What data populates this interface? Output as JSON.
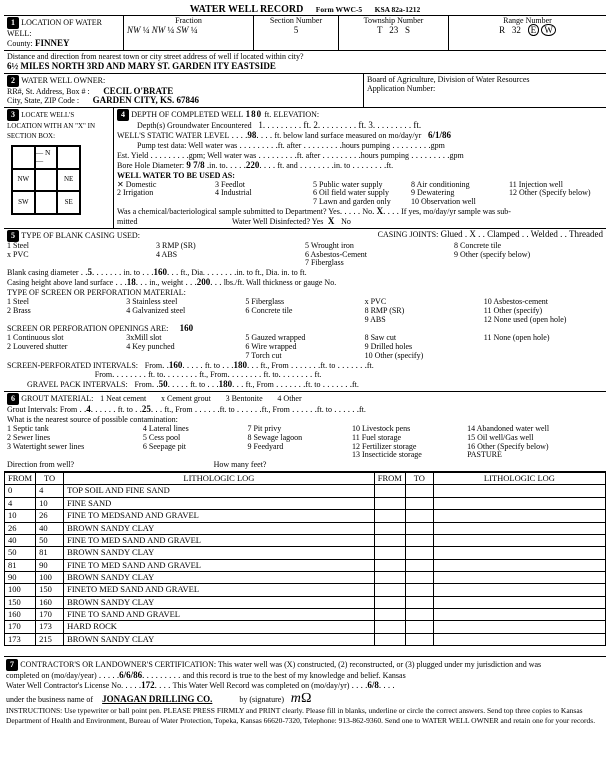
{
  "header": {
    "title": "WATER WELL RECORD",
    "form": "Form WWC-5",
    "ksa": "KSA 82a-1212"
  },
  "location": {
    "section_label": "LOCATION OF WATER WELL:",
    "county_label": "County:",
    "county": "FINNEY",
    "fraction_label": "Fraction",
    "frac_a": "NW",
    "frac_b": "NW",
    "frac_c": "SW",
    "section_number_label": "Section Number",
    "section_number": "5",
    "township_label": "Township Number",
    "township_t": "T",
    "township_num": "23",
    "township_s": "S",
    "range_label": "Range Number",
    "range_r": "R",
    "range_num": "32",
    "range_ew_e": "E",
    "range_ew_w": "W",
    "distance_label": "Distance and direction from nearest town or city street address of well if located within city?",
    "distance": "6½ MILES NORTH 3RD AND MARY ST. GARDEN   ITY EASTSIDE"
  },
  "owner": {
    "head": "WATER WELL OWNER:",
    "addr_label": "RR#, St. Address, Box # :",
    "city_label": "City, State, ZIP Code :",
    "name": "CECIL O'BRATE",
    "city": "GARDEN CITY, KS. 67846",
    "board": "Board of Agriculture, Division of Water Resources",
    "app_num_label": "Application Number:"
  },
  "locate_box": {
    "head": "LOCATE WELL'S LOCATION WITH AN \"X\" IN SECTION BOX:",
    "nw": "NW",
    "ne": "NE",
    "sw": "SW",
    "se": "SE",
    "w": "W",
    "e": "E",
    "n": "N",
    "s": "S",
    "mile": "1 Mile"
  },
  "depth": {
    "head": "DEPTH OF COMPLETED WELL",
    "depth": "180",
    "ft": "ft.",
    "elev": "ELEVATION:",
    "depths_enc": "Depth(s) Groundwater Encountered",
    "enc1": "1",
    "enc2": "ft.  2",
    "enc3": "ft.  3",
    "enc_ft": "ft.",
    "static_label": "WELL'S STATIC WATER LEVEL",
    "static": "98",
    "static_suffix": "ft. below land surface measured on mo/day/yr",
    "static_date": "6/1/86",
    "pump_test": "Pump test data:  Well water was",
    "ft_after": "ft. after",
    "hours_pumping": "hours pumping",
    "gpm": "gpm",
    "est_yield": "Est. Yield",
    "gpm2": "gpm; Well water was",
    "bore_label": "Bore Hole Diameter:",
    "bore_a": "9 7/8",
    "bore_in_to": "in. to",
    "bore_b": "220",
    "bore_ft_and": "ft. and",
    "bore_in_to2": "in. to",
    "bore_ft": "ft.",
    "use_head": "WELL WATER TO BE USED AS:",
    "uses": [
      {
        "n": "x",
        "l": "Domestic"
      },
      {
        "n": "3",
        "l": "Feedlot"
      },
      {
        "n": "5",
        "l": "Public water supply"
      },
      {
        "n": "8",
        "l": "Air conditioning"
      },
      {
        "n": "11",
        "l": "Injection well"
      },
      {
        "n": "2",
        "l": "Irrigation"
      },
      {
        "n": "4",
        "l": "Industrial"
      },
      {
        "n": "6",
        "l": "Oil field water supply"
      },
      {
        "n": "9",
        "l": "Dewatering"
      },
      {
        "n": "12",
        "l": "Other (Specify below)"
      },
      {
        "n": "",
        "l": ""
      },
      {
        "n": "",
        "l": ""
      },
      {
        "n": "7",
        "l": "Lawn and garden only"
      },
      {
        "n": "10",
        "l": "Observation well"
      },
      {
        "n": "",
        "l": ""
      }
    ],
    "chem_q": "Was a chemical/bacteriological sample submitted to Department?  Yes",
    "chem_no": "No",
    "chem_x": "X",
    "chem_suffix": "If yes, mo/day/yr sample was sub-",
    "mitted": "mitted",
    "disinfected": "Water Well Disinfected?  Yes",
    "disinf_x": "X",
    "disinf_no": "No"
  },
  "casing": {
    "head": "TYPE OF BLANK CASING USED:",
    "opts_row1": [
      "1 Steel",
      "3 RMP (SR)",
      "5 Wrought iron",
      "8 Concrete tile"
    ],
    "opts_row2": [
      "x PVC",
      "4 ABS",
      "6 Asbestos-Cement",
      "9 Other (specify below)"
    ],
    "opts_row3": [
      "",
      "",
      "7 Fiberglass",
      ""
    ],
    "joints_label": "CASING JOINTS:",
    "joints": [
      "Glued . X",
      "Clamped",
      "Welded",
      "Threaded"
    ],
    "blank_dia_label": "Blank casing diameter",
    "blank_dia": "5",
    "blank_in_to": "in. to",
    "blank_to": "160",
    "blank_ft_dia": "ft., Dia.",
    "blank_suffix": "in. to           ft., Dia.           in. to           ft.",
    "casing_height_label": "Casing height above land surface",
    "casing_height": "18",
    "casing_in_weight": "in., weight",
    "casing_weight": "200",
    "casing_lbsft": "lbs./ft. Wall thickness or gauge No.",
    "screen_head": "TYPE OF SCREEN OR PERFORATION MATERIAL:",
    "screen_opts_r1": [
      "1 Steel",
      "3 Stainless steel",
      "5 Fiberglass",
      "x PVC",
      "10 Asbestos-cement"
    ],
    "screen_opts_r2": [
      "2 Brass",
      "4 Galvanized steel",
      "6 Concrete tile",
      "8 RMP (SR)",
      "11 Other (specify)"
    ],
    "screen_opts_r3": [
      "",
      "",
      "",
      "9 ABS",
      "12 None used (open hole)"
    ],
    "open_head": "SCREEN OR PERFORATION OPENINGS ARE:",
    "open_val": "160",
    "open_opts_r1": [
      "1 Continuous slot",
      "3xMill slot",
      "5 Gauzed wrapped",
      "8 Saw cut",
      "11 None (open hole)"
    ],
    "open_opts_r2": [
      "2 Louvered shutter",
      "4 Key punched",
      "6 Wire wrapped",
      "9 Drilled holes",
      ""
    ],
    "open_opts_r3": [
      "",
      "",
      "7 Torch cut",
      "10 Other (specify)",
      ""
    ],
    "perf_label": "SCREEN-PERFORATED INTERVALS:",
    "perf_from1": "160",
    "perf_to1": "180",
    "from_label": "From",
    "ft_to_label": "ft. to",
    "ft_label": "ft.",
    "ft_from_label": "ft., From",
    "ft_to2_label": "ft. to",
    "ft2": "ft.",
    "gravel_label": "GRAVEL PACK INTERVALS:",
    "gravel_from": "50",
    "gravel_to": "180"
  },
  "grout": {
    "head": "GROUT MATERIAL:",
    "opts": [
      "1 Neat cement",
      "x Cement grout",
      "3 Bentonite",
      "4 Other"
    ],
    "intervals_label": "Grout Intervals:   From",
    "from": "4",
    "to": "25",
    "ft_to": "ft. to",
    "ft_from": "ft., From",
    "ft": "ft.",
    "nearest_label": "What is the nearest source of possible contamination:",
    "src": [
      [
        "1 Septic tank",
        "4 Lateral lines",
        "7 Pit privy",
        "10 Livestock pens",
        "14 Abandoned water well"
      ],
      [
        "2 Sewer lines",
        "5 Cess pool",
        "8 Sewage lagoon",
        "11 Fuel storage",
        "15 Oil well/Gas well"
      ],
      [
        "3 Watertight sewer lines",
        "6 Seepage pit",
        "9 Feedyard",
        "12 Fertilizer storage",
        "16 Other (Specify below)"
      ],
      [
        "",
        "",
        "",
        "13 Insecticide storage",
        "PASTURE"
      ]
    ],
    "dir_label": "Direction from well?",
    "how_many_label": "How many feet?"
  },
  "lithology": {
    "cols": [
      "FROM",
      "TO",
      "LITHOLOGIC LOG",
      "FROM",
      "TO",
      "LITHOLOGIC LOG"
    ],
    "rows": [
      [
        "0",
        "4",
        "TOP SOIL AND FINE SAND",
        "",
        "",
        ""
      ],
      [
        "4",
        "10",
        "FINE SAND",
        "",
        "",
        ""
      ],
      [
        "10",
        "26",
        "FINE TO MEDSAND AND GRAVEL",
        "",
        "",
        ""
      ],
      [
        "26",
        "40",
        "BROWN SANDY CLAY",
        "",
        "",
        ""
      ],
      [
        "40",
        "50",
        "FINE TO MED SAND AND GRAVEL",
        "",
        "",
        ""
      ],
      [
        "50",
        "81",
        "BROWN SANDY CLAY",
        "",
        "",
        ""
      ],
      [
        "81",
        "90",
        "FINE TO MED SAND AND GRAVEL",
        "",
        "",
        ""
      ],
      [
        "90",
        "100",
        "BROWN SANDY CLAY",
        "",
        "",
        ""
      ],
      [
        "100",
        "150",
        "FINETO MED SAND AND GRAVEL",
        "",
        "",
        ""
      ],
      [
        "150",
        "160",
        "BROWN SANDY CLAY",
        "",
        "",
        ""
      ],
      [
        "160",
        "170",
        "FINE TO SAND AND GRAVEL",
        "",
        "",
        ""
      ],
      [
        "170",
        "173",
        "HARD ROCK",
        "",
        "",
        ""
      ],
      [
        "173",
        "215",
        "BROWN SANDY CLAY",
        "",
        "",
        ""
      ]
    ]
  },
  "cert": {
    "head": "CONTRACTOR'S OR LANDOWNER'S CERTIFICATION: This water well was (X) constructed, (2) reconstructed, or (3) plugged under my jurisdiction and was",
    "completed_label": "completed on (mo/day/year)",
    "completed": "6/6/86",
    "record_true": "and this record is true to the best of my knowledge and belief. Kansas",
    "license_label": "Water Well Contractor's License No.",
    "license": "172",
    "wwr_completed": "This Water Well Record was completed on (mo/day/yr)",
    "wwr_date": "6/8",
    "under_label": "under the business name of",
    "business": "JONAGAN DRILLING CO.",
    "by_sig": "by (signature)",
    "instructions": "INSTRUCTIONS: Use typewriter or ball point pen. PLEASE PRESS FIRMLY and PRINT clearly. Please fill in blanks, underline or circle the correct answers. Send top three copies to Kansas Department of Health and Environment, Bureau of Water Protection, Topeka, Kansas 66620-7320, Telephone: 913-862-9360. Send one to WATER WELL OWNER and retain one for your records."
  }
}
